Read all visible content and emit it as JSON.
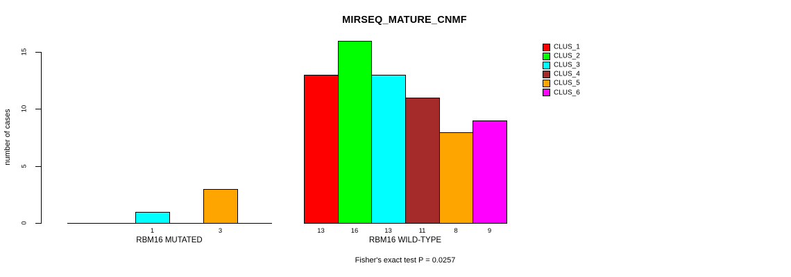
{
  "chart_data": {
    "type": "bar",
    "title": "MIRSEQ_MATURE_CNMF",
    "ylabel": "number of cases",
    "footnote": "Fisher's exact test P = 0.0257",
    "ylim": [
      0,
      16
    ],
    "yticks": [
      0,
      5,
      10,
      15
    ],
    "grid": false,
    "legend_position": "right",
    "series": [
      {
        "name": "CLUS_1",
        "color": "#FF0000"
      },
      {
        "name": "CLUS_2",
        "color": "#00FF00"
      },
      {
        "name": "CLUS_3",
        "color": "#00FFFF"
      },
      {
        "name": "CLUS_4",
        "color": "#A52A2A"
      },
      {
        "name": "CLUS_5",
        "color": "#FFA500"
      },
      {
        "name": "CLUS_6",
        "color": "#FF00FF"
      }
    ],
    "groups": [
      {
        "label": "RBM16 MUTATED",
        "values": [
          0,
          0,
          1,
          0,
          3,
          0
        ],
        "bar_labels": [
          "",
          "",
          "1",
          "",
          "3",
          ""
        ]
      },
      {
        "label": "RBM16 WILD-TYPE",
        "values": [
          13,
          16,
          13,
          11,
          8,
          9
        ],
        "bar_labels": [
          "13",
          "16",
          "13",
          "11",
          "8",
          "9"
        ]
      }
    ]
  }
}
